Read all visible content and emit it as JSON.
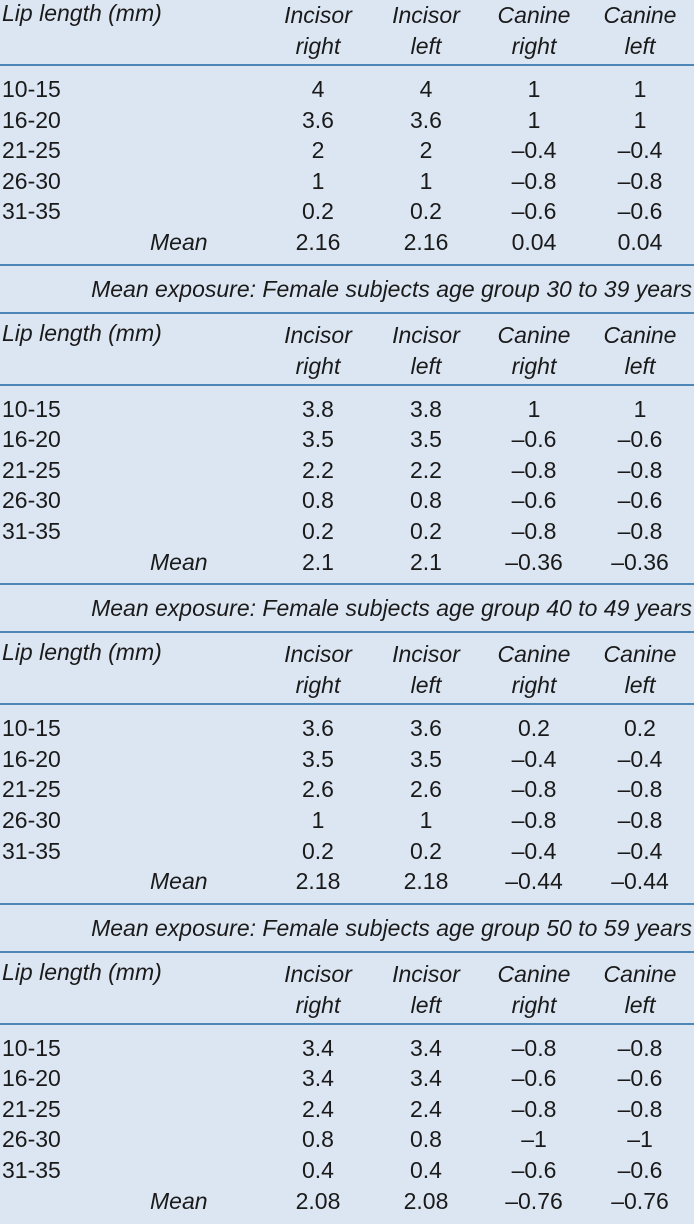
{
  "columns": {
    "lip": "Lip length (mm)",
    "incisor_right": [
      "Incisor",
      "right"
    ],
    "incisor_left": [
      "Incisor",
      "left"
    ],
    "canine_right": [
      "Canine",
      "right"
    ],
    "canine_left": [
      "Canine",
      "left"
    ]
  },
  "mean_label": "Mean",
  "tables": [
    {
      "caption": "",
      "rows": [
        {
          "lip": "10-15",
          "ir": "4",
          "il": "4",
          "cr": "1",
          "cl": "1"
        },
        {
          "lip": "16-20",
          "ir": "3.6",
          "il": "3.6",
          "cr": "1",
          "cl": "1"
        },
        {
          "lip": "21-25",
          "ir": "2",
          "il": "2",
          "cr": "–0.4",
          "cl": "–0.4"
        },
        {
          "lip": "26-30",
          "ir": "1",
          "il": "1",
          "cr": "–0.8",
          "cl": "–0.8"
        },
        {
          "lip": "31-35",
          "ir": "0.2",
          "il": "0.2",
          "cr": "–0.6",
          "cl": "–0.6"
        }
      ],
      "mean": {
        "ir": "2.16",
        "il": "2.16",
        "cr": "0.04",
        "cl": "0.04"
      }
    },
    {
      "caption": "Mean exposure: Female subjects age group 30 to 39 years",
      "rows": [
        {
          "lip": "10-15",
          "ir": "3.8",
          "il": "3.8",
          "cr": "1",
          "cl": "1"
        },
        {
          "lip": "16-20",
          "ir": "3.5",
          "il": "3.5",
          "cr": "–0.6",
          "cl": "–0.6"
        },
        {
          "lip": "21-25",
          "ir": "2.2",
          "il": "2.2",
          "cr": "–0.8",
          "cl": "–0.8"
        },
        {
          "lip": "26-30",
          "ir": "0.8",
          "il": "0.8",
          "cr": "–0.6",
          "cl": "–0.6"
        },
        {
          "lip": "31-35",
          "ir": "0.2",
          "il": "0.2",
          "cr": "–0.8",
          "cl": "–0.8"
        }
      ],
      "mean": {
        "ir": "2.1",
        "il": "2.1",
        "cr": "–0.36",
        "cl": "–0.36"
      }
    },
    {
      "caption": "Mean exposure: Female subjects age group 40 to 49 years",
      "rows": [
        {
          "lip": "10-15",
          "ir": "3.6",
          "il": "3.6",
          "cr": "0.2",
          "cl": "0.2"
        },
        {
          "lip": "16-20",
          "ir": "3.5",
          "il": "3.5",
          "cr": "–0.4",
          "cl": "–0.4"
        },
        {
          "lip": "21-25",
          "ir": "2.6",
          "il": "2.6",
          "cr": "–0.8",
          "cl": "–0.8"
        },
        {
          "lip": "26-30",
          "ir": "1",
          "il": "1",
          "cr": "–0.8",
          "cl": "–0.8"
        },
        {
          "lip": "31-35",
          "ir": "0.2",
          "il": "0.2",
          "cr": "–0.4",
          "cl": "–0.4"
        }
      ],
      "mean": {
        "ir": "2.18",
        "il": "2.18",
        "cr": "–0.44",
        "cl": "–0.44"
      }
    },
    {
      "caption": "Mean exposure: Female subjects age group 50 to 59 years",
      "rows": [
        {
          "lip": "10-15",
          "ir": "3.4",
          "il": "3.4",
          "cr": "–0.8",
          "cl": "–0.8"
        },
        {
          "lip": "16-20",
          "ir": "3.4",
          "il": "3.4",
          "cr": "–0.6",
          "cl": "–0.6"
        },
        {
          "lip": "21-25",
          "ir": "2.4",
          "il": "2.4",
          "cr": "–0.8",
          "cl": "–0.8"
        },
        {
          "lip": "26-30",
          "ir": "0.8",
          "il": "0.8",
          "cr": "–1",
          "cl": "–1"
        },
        {
          "lip": "31-35",
          "ir": "0.4",
          "il": "0.4",
          "cr": "–0.6",
          "cl": "–0.6"
        }
      ],
      "mean": {
        "ir": "2.08",
        "il": "2.08",
        "cr": "–0.76",
        "cl": "–0.76"
      }
    }
  ]
}
